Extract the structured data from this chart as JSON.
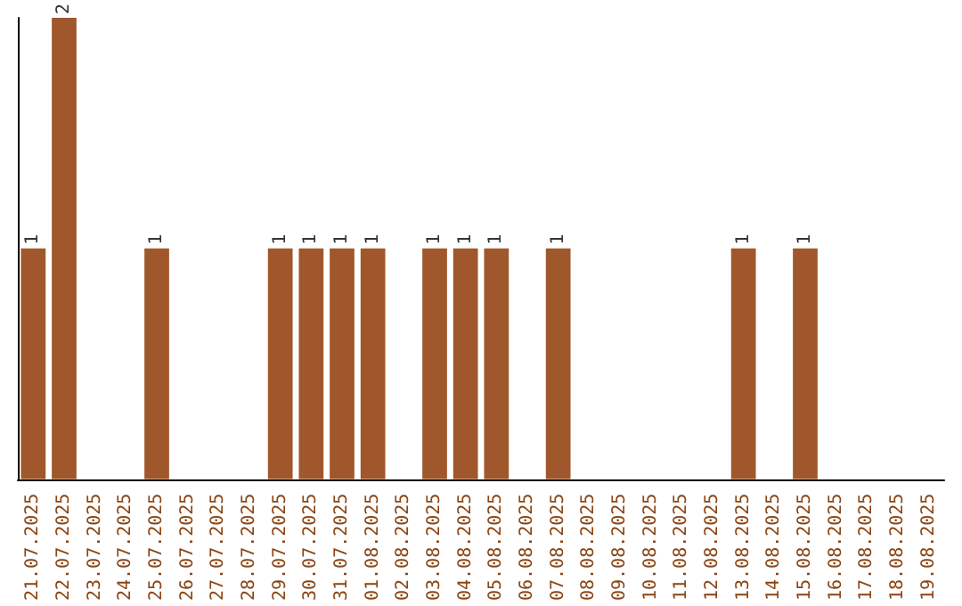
{
  "chart_data": {
    "type": "bar",
    "categories": [
      "21.07.2025",
      "22.07.2025",
      "23.07.2025",
      "24.07.2025",
      "25.07.2025",
      "26.07.2025",
      "27.07.2025",
      "28.07.2025",
      "29.07.2025",
      "30.07.2025",
      "31.07.2025",
      "01.08.2025",
      "02.08.2025",
      "03.08.2025",
      "04.08.2025",
      "05.08.2025",
      "06.08.2025",
      "07.08.2025",
      "08.08.2025",
      "09.08.2025",
      "10.08.2025",
      "11.08.2025",
      "12.08.2025",
      "13.08.2025",
      "14.08.2025",
      "15.08.2025",
      "16.08.2025",
      "17.08.2025",
      "18.08.2025",
      "19.08.2025"
    ],
    "values": [
      1,
      2,
      0,
      0,
      1,
      0,
      0,
      0,
      1,
      1,
      1,
      1,
      0,
      1,
      1,
      1,
      0,
      1,
      0,
      0,
      0,
      0,
      0,
      1,
      0,
      1,
      0,
      0,
      0,
      0
    ],
    "value_labels": [
      "1",
      "2",
      null,
      null,
      "1",
      null,
      null,
      null,
      "1",
      "1",
      "1",
      "1",
      null,
      "1",
      "1",
      "1",
      null,
      "1",
      null,
      null,
      null,
      null,
      null,
      "1",
      null,
      "1",
      null,
      null,
      null,
      null
    ],
    "color": "#a0572b",
    "tick_labels": "x"
  }
}
